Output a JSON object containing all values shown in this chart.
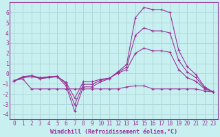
{
  "xlabel": "Windchill (Refroidissement éolien,°C)",
  "background_color": "#c8f0f0",
  "grid_color": "#b0d8da",
  "line_color": "#993399",
  "spine_color": "#993399",
  "xlim": [
    -0.5,
    23.5
  ],
  "ylim": [
    -4.5,
    7.0
  ],
  "xticks": [
    0,
    1,
    2,
    3,
    4,
    5,
    6,
    7,
    8,
    9,
    10,
    11,
    12,
    13,
    14,
    15,
    16,
    17,
    18,
    19,
    20,
    21,
    22,
    23
  ],
  "yticks": [
    -4,
    -3,
    -2,
    -1,
    0,
    1,
    2,
    3,
    4,
    5,
    6
  ],
  "line1_y": [
    -0.7,
    -0.3,
    -0.2,
    -0.5,
    -0.4,
    -0.3,
    -1.2,
    -3.7,
    -1.3,
    -1.3,
    -0.8,
    -0.5,
    0.2,
    0.9,
    5.5,
    6.5,
    6.3,
    6.3,
    6.0,
    2.3,
    0.7,
    -0.1,
    -1.3,
    -1.8
  ],
  "line2_y": [
    -0.7,
    -0.5,
    -1.5,
    -1.5,
    -1.5,
    -1.5,
    -1.5,
    -1.5,
    -1.5,
    -1.5,
    -1.5,
    -1.5,
    -1.5,
    -1.3,
    -1.2,
    -1.2,
    -1.5,
    -1.5,
    -1.5,
    -1.5,
    -1.5,
    -1.5,
    -1.7,
    -1.8
  ],
  "line3_y": [
    -0.7,
    -0.4,
    -0.3,
    -0.45,
    -0.35,
    -0.3,
    -0.85,
    -2.4,
    -0.8,
    -0.8,
    -0.55,
    -0.45,
    0.05,
    0.4,
    2.0,
    2.5,
    2.25,
    2.25,
    2.1,
    0.4,
    -0.4,
    -0.75,
    -1.5,
    -1.8
  ],
  "line4_y": [
    -0.7,
    -0.35,
    -0.2,
    -0.38,
    -0.3,
    -0.25,
    -1.0,
    -3.05,
    -1.05,
    -1.05,
    -0.65,
    -0.45,
    0.12,
    0.65,
    3.75,
    4.5,
    4.2,
    4.2,
    4.0,
    1.3,
    0.15,
    -0.4,
    -1.4,
    -1.8
  ],
  "tick_fontsize": 5.5,
  "xlabel_fontsize": 6.0
}
